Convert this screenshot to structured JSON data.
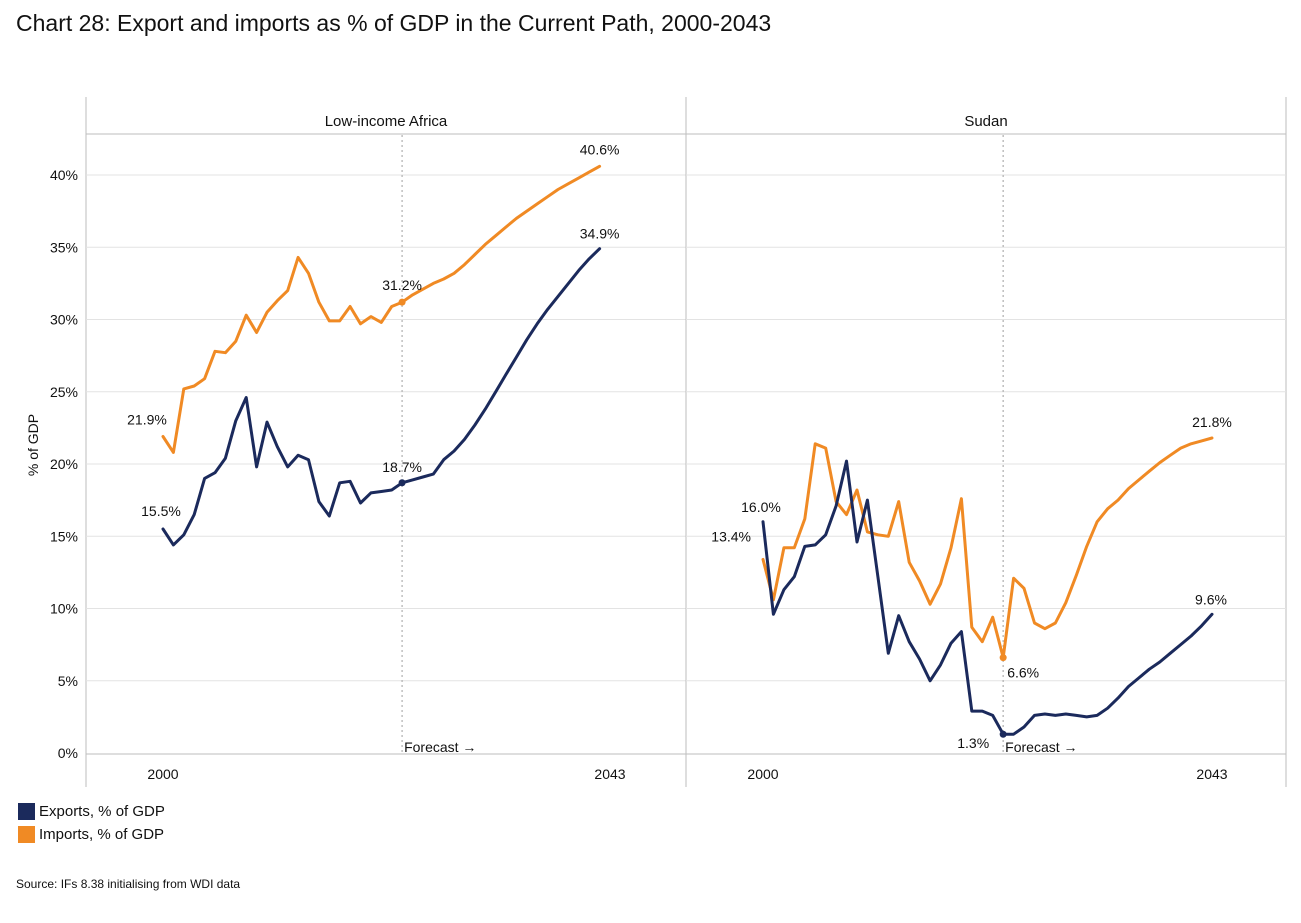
{
  "title": "Chart 28: Export and imports as % of GDP in the Current Path, 2000-2043",
  "source": "Source: IFs 8.38 initialising from WDI data",
  "colors": {
    "exports": "#1b2a5c",
    "imports": "#f08a24",
    "grid": "#e3e3e3",
    "panel_border": "#bdbdbd"
  },
  "legend": [
    {
      "label": "Exports, % of GDP",
      "series": "exports"
    },
    {
      "label": "Imports, % of GDP",
      "series": "imports"
    }
  ],
  "chart_data": {
    "type": "line",
    "ylabel": "% of GDP",
    "ylim": [
      0,
      42
    ],
    "y_ticks": [
      0,
      5,
      10,
      15,
      20,
      25,
      30,
      35,
      40
    ],
    "y_tick_labels": [
      "0%",
      "5%",
      "10%",
      "15%",
      "20%",
      "25%",
      "30%",
      "35%",
      "40%"
    ],
    "x_range": [
      2000,
      2043
    ],
    "x_tick_labels": [
      "2000",
      "2043"
    ],
    "forecast_start": 2023,
    "forecast_label": "Forecast →",
    "panels": [
      {
        "title": "Low-income Africa",
        "series": [
          {
            "name": "Imports, % of GDP",
            "key": "imports",
            "points": [
              [
                2000,
                21.9
              ],
              [
                2001,
                20.8
              ],
              [
                2002,
                25.2
              ],
              [
                2003,
                25.4
              ],
              [
                2004,
                25.9
              ],
              [
                2005,
                27.8
              ],
              [
                2006,
                27.7
              ],
              [
                2007,
                28.5
              ],
              [
                2008,
                30.3
              ],
              [
                2009,
                29.1
              ],
              [
                2010,
                30.5
              ],
              [
                2011,
                31.3
              ],
              [
                2012,
                32.0
              ],
              [
                2013,
                34.3
              ],
              [
                2014,
                33.2
              ],
              [
                2015,
                31.2
              ],
              [
                2016,
                29.9
              ],
              [
                2017,
                29.9
              ],
              [
                2018,
                30.9
              ],
              [
                2019,
                29.7
              ],
              [
                2020,
                30.2
              ],
              [
                2021,
                29.8
              ],
              [
                2022,
                30.9
              ],
              [
                2023,
                31.2
              ],
              [
                2024,
                31.7
              ],
              [
                2025,
                32.1
              ],
              [
                2026,
                32.5
              ],
              [
                2027,
                32.8
              ],
              [
                2028,
                33.2
              ],
              [
                2029,
                33.8
              ],
              [
                2030,
                34.5
              ],
              [
                2031,
                35.2
              ],
              [
                2032,
                35.8
              ],
              [
                2033,
                36.4
              ],
              [
                2034,
                37.0
              ],
              [
                2035,
                37.5
              ],
              [
                2036,
                38.0
              ],
              [
                2037,
                38.5
              ],
              [
                2038,
                39.0
              ],
              [
                2039,
                39.4
              ],
              [
                2040,
                39.8
              ],
              [
                2041,
                40.2
              ],
              [
                2042,
                40.6
              ]
            ]
          },
          {
            "name": "Exports, % of GDP",
            "key": "exports",
            "points": [
              [
                2000,
                15.5
              ],
              [
                2001,
                14.4
              ],
              [
                2002,
                15.1
              ],
              [
                2003,
                16.5
              ],
              [
                2004,
                19.0
              ],
              [
                2005,
                19.4
              ],
              [
                2006,
                20.4
              ],
              [
                2007,
                23.0
              ],
              [
                2008,
                24.6
              ],
              [
                2009,
                19.8
              ],
              [
                2010,
                22.9
              ],
              [
                2011,
                21.2
              ],
              [
                2012,
                19.8
              ],
              [
                2013,
                20.6
              ],
              [
                2014,
                20.3
              ],
              [
                2015,
                17.4
              ],
              [
                2016,
                16.4
              ],
              [
                2017,
                18.7
              ],
              [
                2018,
                18.8
              ],
              [
                2019,
                17.3
              ],
              [
                2020,
                18.0
              ],
              [
                2021,
                18.1
              ],
              [
                2022,
                18.2
              ],
              [
                2023,
                18.7
              ],
              [
                2024,
                18.9
              ],
              [
                2025,
                19.1
              ],
              [
                2026,
                19.3
              ],
              [
                2027,
                20.3
              ],
              [
                2028,
                20.9
              ],
              [
                2029,
                21.7
              ],
              [
                2030,
                22.7
              ],
              [
                2031,
                23.8
              ],
              [
                2032,
                25.0
              ],
              [
                2033,
                26.2
              ],
              [
                2034,
                27.4
              ],
              [
                2035,
                28.6
              ],
              [
                2036,
                29.7
              ],
              [
                2037,
                30.7
              ],
              [
                2038,
                31.6
              ],
              [
                2039,
                32.5
              ],
              [
                2040,
                33.4
              ],
              [
                2041,
                34.2
              ],
              [
                2042,
                34.9
              ]
            ]
          }
        ],
        "data_labels": [
          {
            "series": "imports",
            "text": "21.9%"
          },
          {
            "series": "imports",
            "text": "31.2%"
          },
          {
            "series": "imports",
            "text": "40.6%"
          },
          {
            "series": "exports",
            "text": "15.5%"
          },
          {
            "series": "exports",
            "text": "18.7%"
          },
          {
            "series": "exports",
            "text": "34.9%"
          }
        ]
      },
      {
        "title": "Sudan",
        "series": [
          {
            "name": "Imports, % of GDP",
            "key": "imports",
            "points": [
              [
                2000,
                13.4
              ],
              [
                2001,
                10.6
              ],
              [
                2002,
                14.2
              ],
              [
                2003,
                14.2
              ],
              [
                2004,
                16.2
              ],
              [
                2005,
                21.4
              ],
              [
                2006,
                21.1
              ],
              [
                2007,
                17.4
              ],
              [
                2008,
                16.5
              ],
              [
                2009,
                18.2
              ],
              [
                2010,
                15.3
              ],
              [
                2011,
                15.1
              ],
              [
                2012,
                15.0
              ],
              [
                2013,
                17.4
              ],
              [
                2014,
                13.2
              ],
              [
                2015,
                11.9
              ],
              [
                2016,
                10.3
              ],
              [
                2017,
                11.7
              ],
              [
                2018,
                14.2
              ],
              [
                2019,
                17.6
              ],
              [
                2020,
                8.7
              ],
              [
                2021,
                7.7
              ],
              [
                2022,
                9.4
              ],
              [
                2023,
                6.6
              ],
              [
                2024,
                12.1
              ],
              [
                2025,
                11.4
              ],
              [
                2026,
                9.0
              ],
              [
                2027,
                8.6
              ],
              [
                2028,
                9.0
              ],
              [
                2029,
                10.4
              ],
              [
                2030,
                12.3
              ],
              [
                2031,
                14.3
              ],
              [
                2032,
                16.0
              ],
              [
                2033,
                16.9
              ],
              [
                2034,
                17.5
              ],
              [
                2035,
                18.3
              ],
              [
                2036,
                18.9
              ],
              [
                2037,
                19.5
              ],
              [
                2038,
                20.1
              ],
              [
                2039,
                20.6
              ],
              [
                2040,
                21.1
              ],
              [
                2041,
                21.4
              ],
              [
                2042,
                21.6
              ],
              [
                2043,
                21.8
              ]
            ]
          },
          {
            "name": "Exports, % of GDP",
            "key": "exports",
            "points": [
              [
                2000,
                16.0
              ],
              [
                2001,
                9.6
              ],
              [
                2002,
                11.3
              ],
              [
                2003,
                12.2
              ],
              [
                2004,
                14.3
              ],
              [
                2005,
                14.4
              ],
              [
                2006,
                15.1
              ],
              [
                2007,
                17.1
              ],
              [
                2008,
                20.2
              ],
              [
                2009,
                14.6
              ],
              [
                2010,
                17.5
              ],
              [
                2011,
                12.2
              ],
              [
                2012,
                6.9
              ],
              [
                2013,
                9.5
              ],
              [
                2014,
                7.7
              ],
              [
                2015,
                6.5
              ],
              [
                2016,
                5.0
              ],
              [
                2017,
                6.1
              ],
              [
                2018,
                7.6
              ],
              [
                2019,
                8.4
              ],
              [
                2020,
                2.9
              ],
              [
                2021,
                2.9
              ],
              [
                2022,
                2.6
              ],
              [
                2023,
                1.3
              ],
              [
                2024,
                1.3
              ],
              [
                2025,
                1.8
              ],
              [
                2026,
                2.6
              ],
              [
                2027,
                2.7
              ],
              [
                2028,
                2.6
              ],
              [
                2029,
                2.7
              ],
              [
                2030,
                2.6
              ],
              [
                2031,
                2.5
              ],
              [
                2032,
                2.6
              ],
              [
                2033,
                3.1
              ],
              [
                2034,
                3.8
              ],
              [
                2035,
                4.6
              ],
              [
                2036,
                5.2
              ],
              [
                2037,
                5.8
              ],
              [
                2038,
                6.3
              ],
              [
                2039,
                6.9
              ],
              [
                2040,
                7.5
              ],
              [
                2041,
                8.1
              ],
              [
                2042,
                8.8
              ],
              [
                2043,
                9.6
              ]
            ]
          }
        ],
        "data_labels": [
          {
            "series": "imports",
            "text": "13.4%"
          },
          {
            "series": "imports",
            "text": "6.6%"
          },
          {
            "series": "imports",
            "text": "21.8%"
          },
          {
            "series": "exports",
            "text": "16.0%"
          },
          {
            "series": "exports",
            "text": "1.3%"
          },
          {
            "series": "exports",
            "text": "9.6%"
          }
        ]
      }
    ]
  }
}
